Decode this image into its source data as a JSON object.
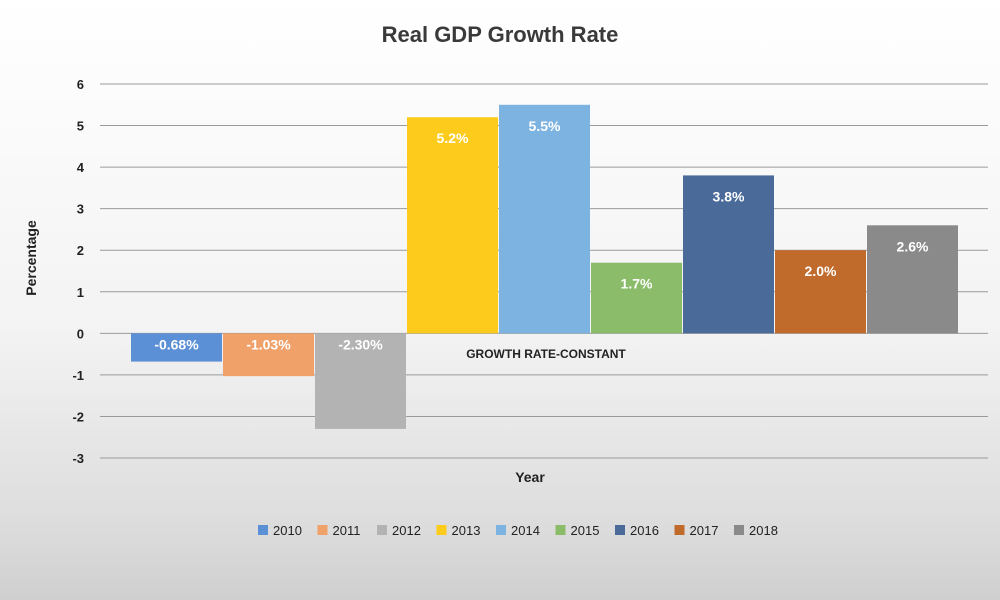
{
  "chart_data": {
    "type": "bar",
    "title": "Real GDP Growth Rate",
    "xlabel": "Year",
    "ylabel": "Percentage",
    "category_label": "GROWTH RATE-CONSTANT",
    "ylim": [
      -3,
      6
    ],
    "yticks": [
      6,
      5,
      4,
      3,
      2,
      1,
      0,
      -1,
      -2,
      -3
    ],
    "grid": true,
    "legend_position": "bottom",
    "series": [
      {
        "name": "2010",
        "value": -0.68,
        "label": "-0.68%",
        "color": "#5b8fd6"
      },
      {
        "name": "2011",
        "value": -1.03,
        "label": "-1.03%",
        "color": "#f0a069"
      },
      {
        "name": "2012",
        "value": -2.3,
        "label": "-2.30%",
        "color": "#b3b3b3"
      },
      {
        "name": "2013",
        "value": 5.2,
        "label": "5.2%",
        "color": "#fccb1c"
      },
      {
        "name": "2014",
        "value": 5.5,
        "label": "5.5%",
        "color": "#7db3e0"
      },
      {
        "name": "2015",
        "value": 1.7,
        "label": "1.7%",
        "color": "#8abc6a"
      },
      {
        "name": "2016",
        "value": 3.8,
        "label": "3.8%",
        "color": "#4a6a99"
      },
      {
        "name": "2017",
        "value": 2.0,
        "label": "2.0%",
        "color": "#c06a2b"
      },
      {
        "name": "2018",
        "value": 2.6,
        "label": "2.6%",
        "color": "#8a8a8a"
      }
    ]
  }
}
